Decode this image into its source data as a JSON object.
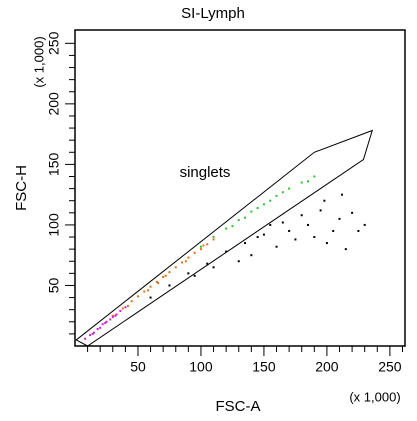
{
  "chart_data": {
    "type": "scatter",
    "title": "SI-Lymph",
    "xlabel": "FSC-A",
    "ylabel": "FSC-H",
    "xunit": "(x 1,000)",
    "yunit": "(x 1,000)",
    "xlim": [
      0,
      262
    ],
    "ylim": [
      0,
      261
    ],
    "xticks": [
      50,
      100,
      150,
      200,
      250
    ],
    "yticks": [
      50,
      100,
      150,
      200,
      250
    ],
    "xminorticks": [
      10,
      20,
      30,
      40,
      60,
      70,
      80,
      90,
      110,
      120,
      130,
      140,
      160,
      170,
      180,
      190,
      210,
      220,
      230,
      240,
      260
    ],
    "yminorticks": [
      10,
      20,
      30,
      40,
      60,
      70,
      80,
      90,
      110,
      120,
      130,
      140,
      160,
      170,
      180,
      190,
      210,
      220,
      230,
      240
    ],
    "series": [
      {
        "color": "#000000",
        "x": [
          60,
          75,
          90,
          105,
          120,
          135,
          150,
          165,
          180,
          195,
          210,
          220,
          225,
          140,
          160,
          175,
          190,
          200,
          215,
          110,
          130,
          170,
          185,
          205,
          230,
          95,
          155,
          145,
          198,
          212
        ],
        "y": [
          40,
          50,
          60,
          68,
          78,
          85,
          92,
          102,
          108,
          112,
          105,
          110,
          95,
          75,
          82,
          88,
          90,
          85,
          80,
          65,
          70,
          95,
          100,
          95,
          100,
          58,
          100,
          90,
          120,
          125
        ]
      },
      {
        "color": "#30c030",
        "x": [
          100,
          110,
          120,
          130,
          140,
          150,
          160,
          170,
          180,
          190,
          125,
          145,
          165,
          185,
          135,
          155
        ],
        "y": [
          82,
          90,
          97,
          104,
          111,
          117,
          124,
          130,
          135,
          140,
          99,
          114,
          127,
          136,
          106,
          120
        ]
      },
      {
        "color": "#e07010",
        "x": [
          30,
          38,
          45,
          50,
          55,
          60,
          65,
          70,
          75,
          80,
          85,
          90,
          95,
          100,
          105,
          110,
          58,
          72,
          88,
          102,
          42,
          66
        ],
        "y": [
          25,
          31,
          37,
          41,
          45,
          49,
          53,
          57,
          61,
          65,
          69,
          73,
          77,
          80,
          84,
          88,
          46,
          58,
          70,
          83,
          33,
          52
        ]
      },
      {
        "color": "#d020d0",
        "x": [
          8,
          12,
          15,
          18,
          20,
          22,
          25,
          28,
          30,
          33,
          36,
          40,
          14,
          24,
          32
        ],
        "y": [
          6,
          9,
          11,
          14,
          15,
          18,
          20,
          22,
          24,
          26,
          29,
          32,
          10,
          19,
          25
        ]
      }
    ],
    "gate": {
      "label": "singlets",
      "x": [
        1,
        190,
        236,
        229,
        10
      ],
      "y": [
        5,
        160,
        178,
        154,
        0
      ]
    }
  }
}
